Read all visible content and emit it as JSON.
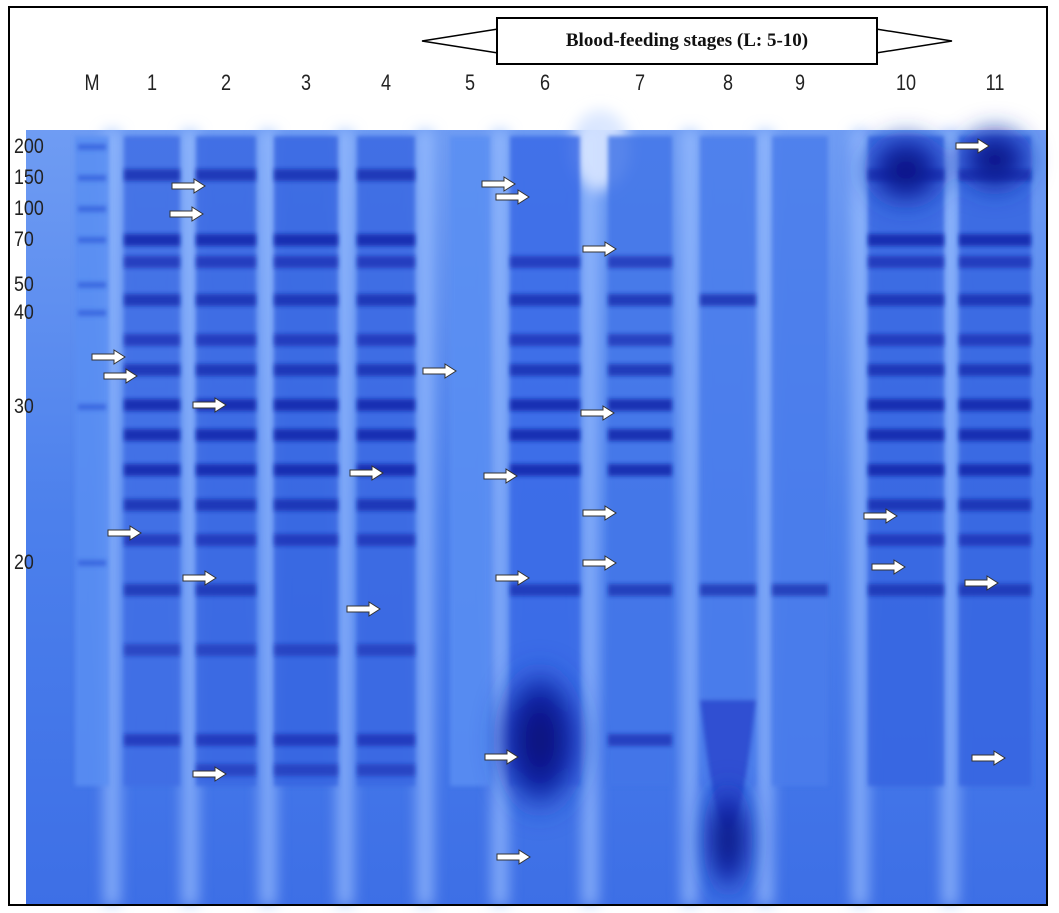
{
  "header": {
    "stage_label": "Blood-feeding stages (L: 5-10)"
  },
  "lanes": [
    "M",
    "1",
    "2",
    "3",
    "4",
    "5",
    "6",
    "7",
    "8",
    "9",
    "10",
    "11"
  ],
  "marker_sizes": [
    "200",
    "150",
    "100",
    "70",
    "50",
    "40",
    "30",
    "20"
  ],
  "colors": {
    "gel_base": "#4a7ff0",
    "band_dark": "#0b1fa8",
    "lane_gap": "#a8c8ff",
    "arrow_fill": "#ffffff"
  }
}
